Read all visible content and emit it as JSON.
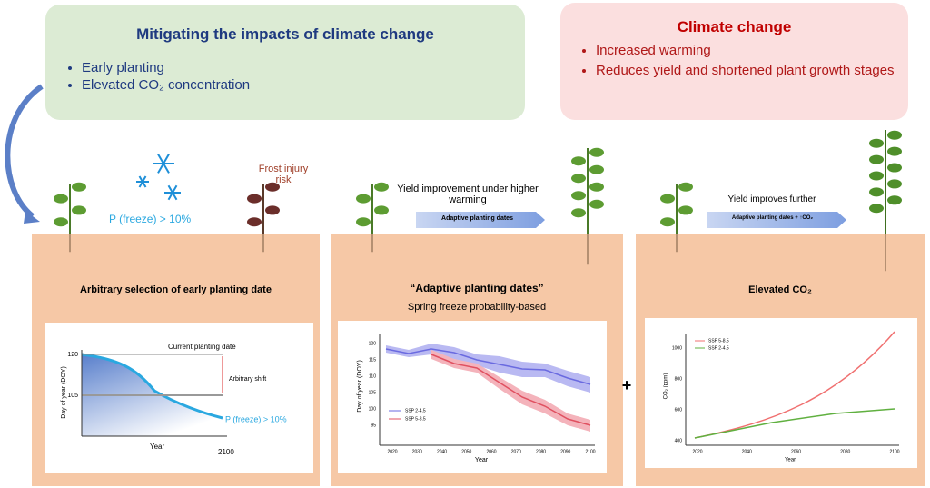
{
  "mitigation": {
    "title": "Mitigating the impacts of climate change",
    "bullets": [
      "Early planting",
      "Elevated CO₂ concentration"
    ]
  },
  "climate_change": {
    "title": "Climate change",
    "bullets": [
      "Increased warming",
      "Reduces yield and shortened plant growth stages"
    ]
  },
  "scenarios": [
    {
      "annotation": "P (freeze) > 10%",
      "risk": "Frost injury risk",
      "title": "Arbitrary selection of early planting date",
      "chart": {
        "y_label": "Day of year (DOY)",
        "yticks": [
          120,
          105
        ],
        "x_label": "Year",
        "x_end": 2100,
        "current": "Current planting date",
        "shift": "Arbitrary shift",
        "threshold": "P (freeze) > 10%"
      }
    },
    {
      "arrow_caption": "Yield improvement under higher warming",
      "arrow_label": "Adaptive planting dates",
      "title": "“Adaptive planting dates”",
      "subtitle": "Spring freeze probability-based",
      "chart": {
        "y_label": "Day of year (DOY)",
        "yticks": [
          120,
          115,
          110,
          105,
          100,
          95
        ],
        "x_label": "Year",
        "xticks": [
          2020,
          2030,
          2040,
          2050,
          2060,
          2070,
          2080,
          2090,
          2100
        ],
        "legend": [
          "SSP 2-4.5",
          "SSP 5-8.5"
        ]
      }
    },
    {
      "arrow_caption": "Yield improves further",
      "arrow_label": "Adaptive planting dates + ↑CO₂",
      "title": "Elevated CO₂",
      "chart": {
        "y_label": "CO₂ (ppm)",
        "yticks": [
          1000,
          800,
          600,
          400
        ],
        "x_label": "Year",
        "xticks": [
          2020,
          2040,
          2060,
          2080,
          2100
        ],
        "legend": [
          "SSP 5-8.5",
          "SSP 2-4.5"
        ]
      }
    }
  ]
}
